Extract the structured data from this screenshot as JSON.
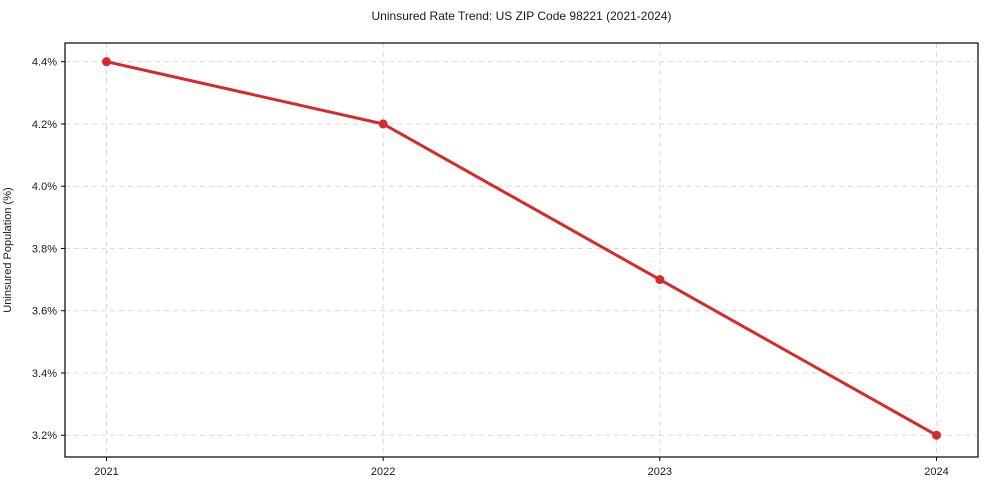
{
  "chart_data": {
    "type": "line",
    "title": "Uninsured Rate Trend: US ZIP Code 98221 (2021-2024)",
    "xlabel": "",
    "ylabel": "Uninsured Population (%)",
    "categories": [
      "2021",
      "2022",
      "2023",
      "2024"
    ],
    "x": [
      2021,
      2022,
      2023,
      2024
    ],
    "series": [
      {
        "name": "Uninsured Population (%)",
        "values": [
          4.4,
          4.2,
          3.7,
          3.2
        ]
      }
    ],
    "y_ticks": [
      3.2,
      3.4,
      3.6,
      3.8,
      4.0,
      4.2,
      4.4
    ],
    "y_tick_labels": [
      "3.2%",
      "3.4%",
      "3.6%",
      "3.8%",
      "4.0%",
      "4.2%",
      "4.4%"
    ],
    "x_tick_labels": [
      "2021",
      "2022",
      "2023",
      "2024"
    ],
    "ylim": [
      3.13,
      4.46
    ],
    "xlim": [
      2020.85,
      2024.15
    ],
    "grid": true,
    "grid_style": "dashed",
    "legend": "none",
    "marker": "circle",
    "colors": {
      "line": "#d62b2b",
      "marker": "#d62b2b",
      "grid": "#d9d9d9",
      "axis": "#000000",
      "text": "#1a1a1a",
      "background": "#ffffff"
    }
  }
}
